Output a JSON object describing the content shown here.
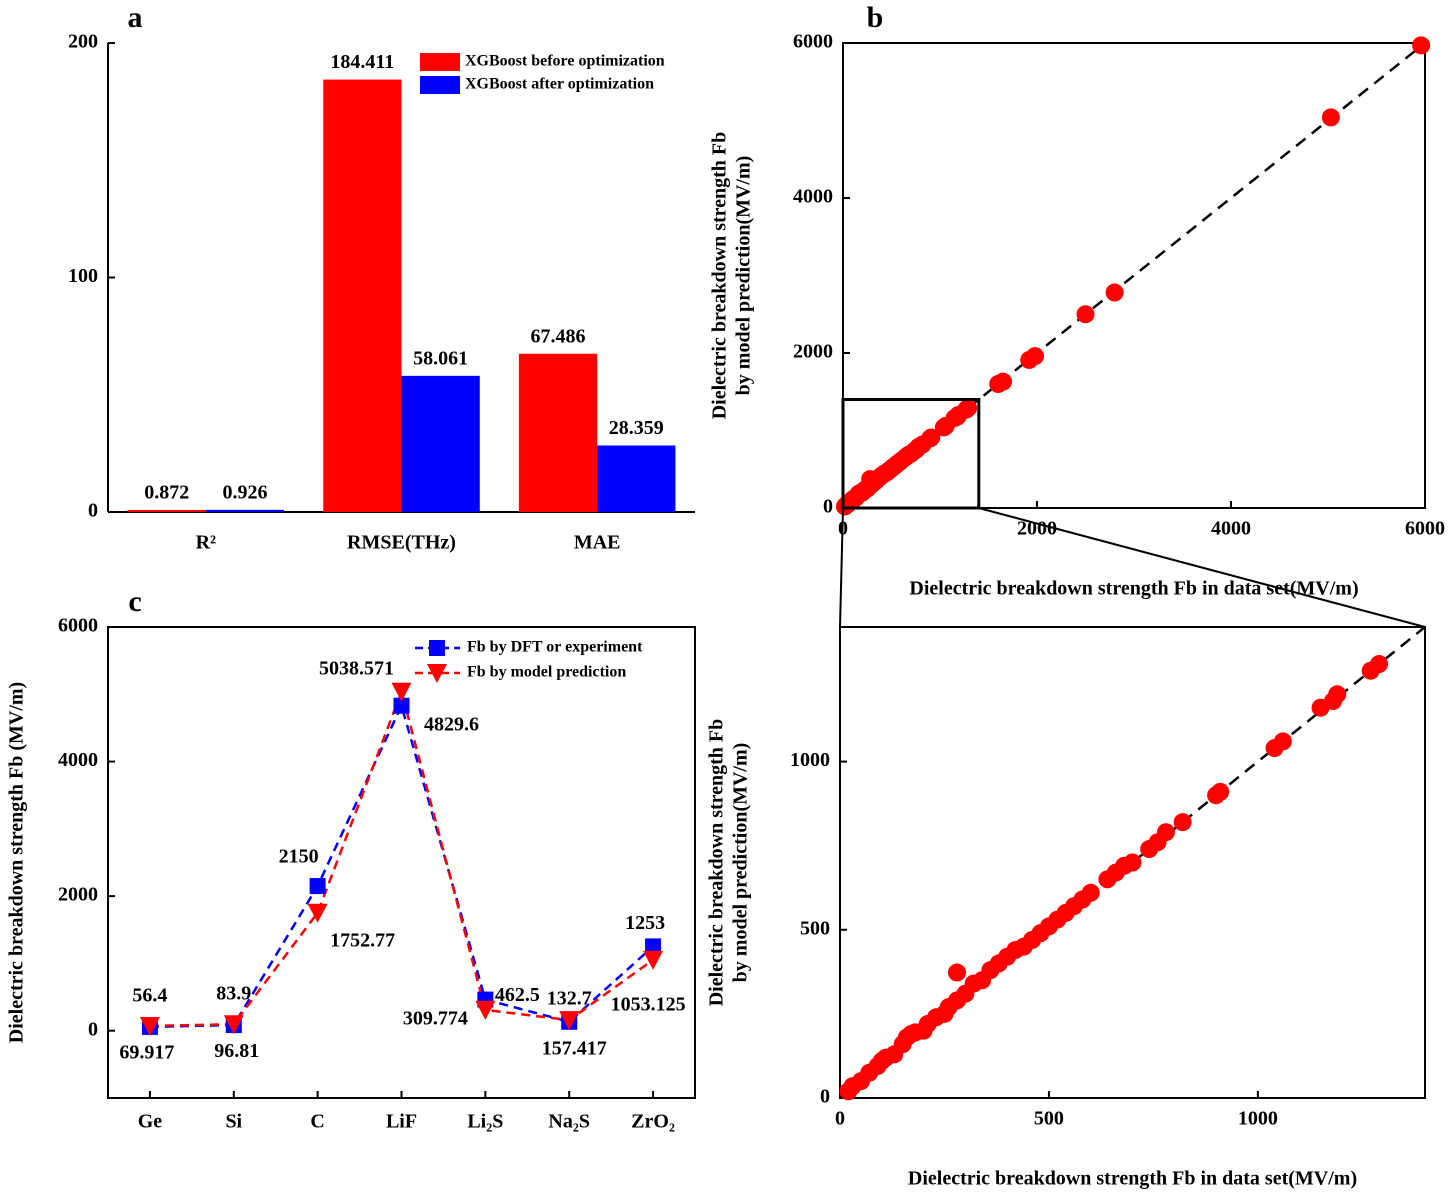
{
  "chart_data": [
    {
      "type": "bar",
      "label": "a",
      "categories": [
        "R²",
        "RMSE(THz)",
        "MAE"
      ],
      "series": [
        {
          "name": "XGBoost before optimization",
          "color": "#ff0000",
          "values": [
            0.872,
            184.411,
            67.486
          ]
        },
        {
          "name": "XGBoost after optimization",
          "color": "#0000ff",
          "values": [
            0.926,
            58.061,
            28.359
          ]
        }
      ],
      "ylim": [
        0,
        200
      ],
      "yticks": [
        0,
        100,
        200
      ],
      "legend": "upper right"
    },
    {
      "type": "scatter",
      "label": "b",
      "xlabel": "Dielectric breakdown strength Fb in data set(MV/m)",
      "ylabel": [
        "Dielectric breakdown strength Fb",
        "by model prediction(MV/m)"
      ],
      "color": "#ff0000",
      "x": [
        20,
        30,
        50,
        70,
        90,
        100,
        110,
        130,
        150,
        160,
        170,
        180,
        200,
        210,
        230,
        250,
        260,
        280,
        280,
        300,
        320,
        340,
        360,
        380,
        400,
        420,
        440,
        460,
        480,
        500,
        520,
        540,
        560,
        580,
        600,
        640,
        660,
        680,
        700,
        740,
        760,
        780,
        820,
        900,
        910,
        1040,
        1060,
        1150,
        1180,
        1190,
        1270,
        1290,
        1600,
        1650,
        1920,
        1980,
        2500,
        2800,
        5030,
        5960
      ],
      "y": [
        20,
        35,
        50,
        75,
        95,
        110,
        120,
        130,
        160,
        180,
        190,
        195,
        200,
        220,
        240,
        250,
        270,
        290,
        373,
        310,
        340,
        350,
        380,
        400,
        420,
        440,
        450,
        470,
        490,
        510,
        530,
        550,
        570,
        590,
        610,
        650,
        670,
        690,
        700,
        740,
        760,
        790,
        820,
        900,
        910,
        1040,
        1060,
        1160,
        1180,
        1200,
        1270,
        1290,
        1600,
        1630,
        1910,
        1960,
        2500,
        2780,
        5040,
        5970
      ],
      "xlim": [
        0,
        6000
      ],
      "ylim": [
        0,
        6000
      ],
      "xticks": [
        0,
        2000,
        4000,
        6000
      ],
      "yticks": [
        0,
        2000,
        4000,
        6000
      ]
    },
    {
      "type": "line",
      "label": "c",
      "ylabel": "Dielectric breakdown strength Fb (MV/m)",
      "categories": [
        "Ge",
        "Si",
        "C",
        "LiF",
        "Li₂S",
        "Na₂S",
        "ZrO₂"
      ],
      "series": [
        {
          "name": "Fb by DFT or experiment",
          "color": "#0000ff",
          "marker": "square",
          "values": [
            56.4,
            83.9,
            2150,
            4829.6,
            462.5,
            132.7,
            1253
          ]
        },
        {
          "name": "Fb by model prediction",
          "color": "#ff0000",
          "marker": "triangle-down",
          "values": [
            69.917,
            96.81,
            1752.77,
            5038.571,
            309.774,
            157.417,
            1053.125
          ]
        }
      ],
      "ylim": [
        -1000,
        6000
      ],
      "yticks": [
        0,
        2000,
        4000,
        6000
      ],
      "legend": "upper right"
    },
    {
      "type": "scatter",
      "xlabel": "Dielectric breakdown strength Fb in data set(MV/m)",
      "ylabel": [
        "Dielectric breakdown strength Fb",
        "by model prediction(MV/m)"
      ],
      "color": "#ff0000",
      "x": [
        20,
        30,
        50,
        70,
        90,
        100,
        110,
        130,
        150,
        160,
        170,
        180,
        200,
        210,
        230,
        250,
        260,
        280,
        280,
        300,
        320,
        340,
        360,
        380,
        400,
        420,
        440,
        460,
        480,
        500,
        520,
        540,
        560,
        580,
        600,
        640,
        660,
        680,
        700,
        740,
        760,
        780,
        820,
        900,
        910,
        1040,
        1060,
        1150,
        1180,
        1190,
        1270,
        1290
      ],
      "y": [
        20,
        35,
        50,
        75,
        95,
        110,
        120,
        130,
        160,
        180,
        190,
        195,
        200,
        220,
        240,
        250,
        270,
        290,
        373,
        310,
        340,
        350,
        380,
        400,
        420,
        440,
        450,
        470,
        490,
        510,
        530,
        550,
        570,
        590,
        610,
        650,
        670,
        690,
        700,
        740,
        760,
        790,
        820,
        900,
        910,
        1040,
        1060,
        1160,
        1180,
        1200,
        1270,
        1290
      ],
      "xlim": [
        0,
        1400
      ],
      "ylim": [
        0,
        1400
      ],
      "xticks": [
        0,
        500,
        1000
      ],
      "yticks": [
        0,
        500,
        1000
      ]
    }
  ]
}
